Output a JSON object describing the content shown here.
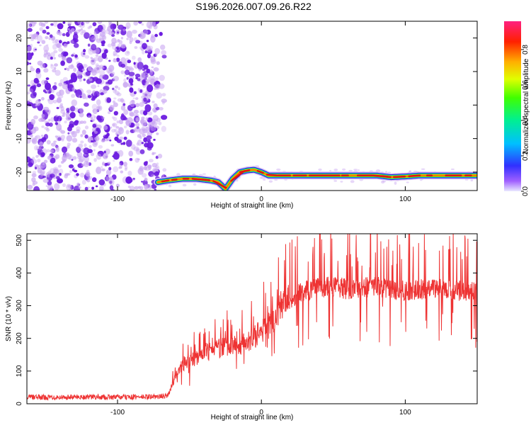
{
  "title": "S196.2026.007.09.26.R22",
  "colors": {
    "snr_line": "#ee3333",
    "speck_dark": "#6a1adf",
    "speck_light": "#c9a6f2",
    "band_center": "#dd1515"
  },
  "chart_data": [
    {
      "type": "heatmap",
      "name": "spectrogram",
      "xlabel": "Height of straight line (km)",
      "ylabel": "Frequency (Hz)",
      "xlim": [
        -163,
        150
      ],
      "ylim": [
        -25.5,
        25
      ],
      "x_ticks": [
        -100,
        0,
        100
      ],
      "x_tick_labels": [
        "-100",
        "0",
        "100"
      ],
      "y_ticks": [
        20,
        10,
        0,
        -10,
        -20
      ],
      "y_tick_labels": [
        "20",
        "10",
        "0",
        "-10",
        "-20"
      ],
      "noise_region_x": [
        -163,
        -72
      ],
      "signal_track": {
        "x": [
          -72,
          -65,
          -55,
          -45,
          -35,
          -30,
          -25,
          -20,
          -15,
          -10,
          -5,
          0,
          5,
          10,
          20,
          40,
          60,
          80,
          90,
          100,
          110,
          120,
          130,
          150
        ],
        "frequency": [
          -23,
          -22.5,
          -22,
          -22,
          -22.5,
          -23,
          -25,
          -22,
          -20,
          -19.5,
          -19.3,
          -20,
          -21,
          -21,
          -21,
          -21,
          -21,
          -21,
          -21.5,
          -21.3,
          -21,
          -21,
          -21,
          -21
        ]
      },
      "colorbar": {
        "label": "Normalized spectral amplitude",
        "range": [
          0,
          0.96
        ],
        "ticks": [
          0.0,
          0.2,
          0.4,
          0.6,
          0.8
        ],
        "tick_labels": [
          "0.0",
          "0.2",
          "0.4",
          "0.6",
          "0.8"
        ]
      }
    },
    {
      "type": "line",
      "name": "snr",
      "xlabel": "Height of straight line (km)",
      "ylabel": "SNR (10 * v/v)",
      "xlim": [
        -163,
        150
      ],
      "ylim": [
        0,
        520
      ],
      "x_ticks": [
        -100,
        0,
        100
      ],
      "x_tick_labels": [
        "-100",
        "0",
        "100"
      ],
      "y_ticks": [
        0,
        100,
        200,
        300,
        400,
        500
      ],
      "y_tick_labels": [
        "0",
        "100",
        "200",
        "300",
        "400",
        "500"
      ],
      "series": [
        {
          "name": "SNR",
          "x": [
            -163,
            -140,
            -120,
            -100,
            -80,
            -70,
            -65,
            -62,
            -58,
            -55,
            -50,
            -45,
            -40,
            -35,
            -30,
            -25,
            -20,
            -15,
            -10,
            -5,
            0,
            5,
            10,
            15,
            20,
            25,
            30,
            40,
            50,
            60,
            70,
            80,
            90,
            100,
            110,
            120,
            130,
            140,
            150
          ],
          "values": [
            20,
            20,
            21,
            20,
            21,
            22,
            24,
            60,
            100,
            120,
            130,
            140,
            155,
            165,
            170,
            175,
            180,
            175,
            190,
            205,
            220,
            240,
            270,
            300,
            320,
            335,
            345,
            355,
            360,
            350,
            355,
            358,
            350,
            345,
            350,
            352,
            348,
            345,
            345
          ]
        }
      ]
    }
  ]
}
